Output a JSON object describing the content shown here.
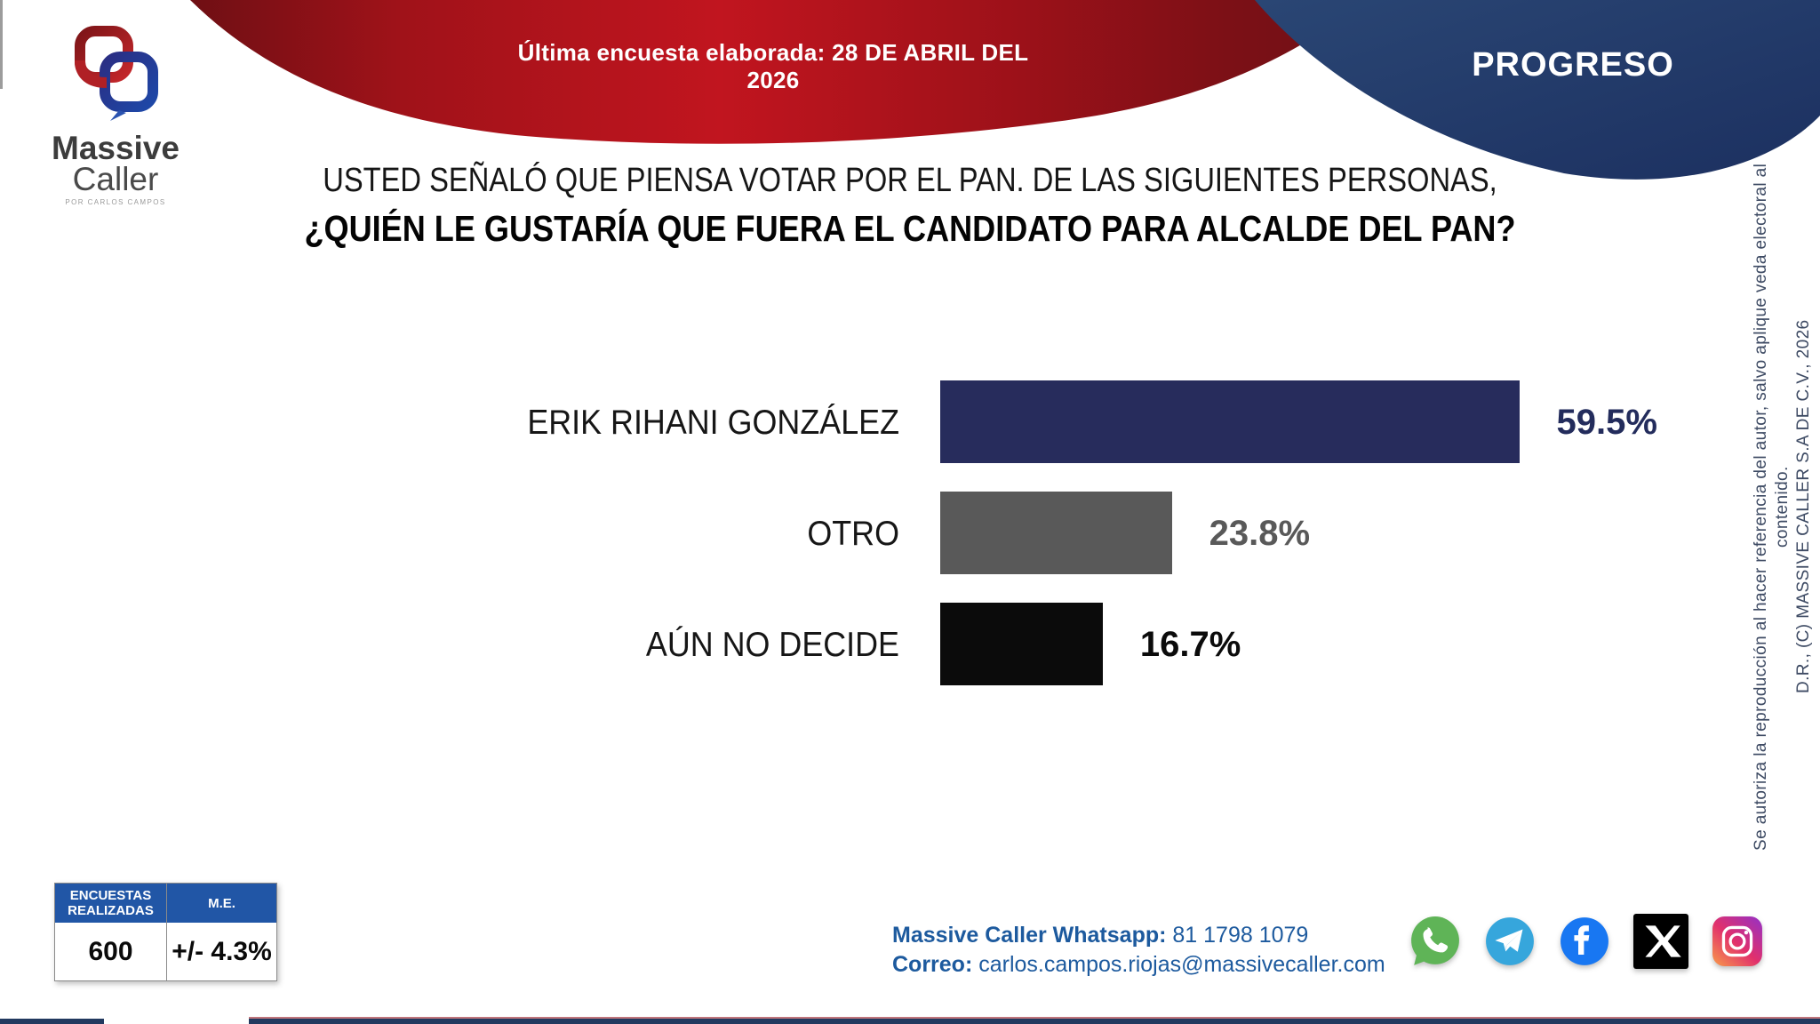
{
  "header": {
    "banner_text": "Última encuesta elaborada: 28 DE ABRIL DEL 2026",
    "region_label": "PROGRESO"
  },
  "logo": {
    "word1": "Massive",
    "word2": "Caller",
    "tagline": "POR CARLOS CAMPOS"
  },
  "question": {
    "line1": "USTED SEÑALÓ QUE PIENSA VOTAR POR EL PAN. DE LAS SIGUIENTES PERSONAS,",
    "line2": "¿QUIÉN LE GUSTARÍA QUE FUERA EL CANDIDATO PARA ALCALDE DEL PAN?"
  },
  "chart_data": {
    "type": "bar",
    "orientation": "horizontal",
    "title": "¿QUIÉN LE GUSTARÍA QUE FUERA EL CANDIDATO PARA ALCALDE DEL PAN?",
    "categories": [
      "ERIK RIHANI GONZÁLEZ",
      "OTRO",
      "AÚN NO DECIDE"
    ],
    "values": [
      59.5,
      23.8,
      16.7
    ],
    "value_labels": [
      "59.5%",
      "23.8%",
      "16.7%"
    ],
    "bar_colors": [
      "#272c5c",
      "#595959",
      "#0b0b0b"
    ],
    "value_text_colors": [
      "#232c5c",
      "#595959",
      "#0b0b0b"
    ],
    "xlim": [
      0,
      100
    ],
    "grid": false,
    "legend": false
  },
  "stats_table": {
    "headers": [
      "ENCUESTAS REALIZADAS",
      "M.E."
    ],
    "values": [
      "600",
      "+/- 4.3%"
    ],
    "header_bg": "#2156a6"
  },
  "contact": {
    "whatsapp_label": "Massive Caller Whatsapp:",
    "whatsapp_number": "81 1798 1079",
    "email_label": "Correo:",
    "email": "carlos.campos.riojas@massivecaller.com"
  },
  "social_icons": [
    "whatsapp",
    "telegram",
    "facebook",
    "x",
    "instagram"
  ],
  "copyright": {
    "line1": "D.R., (C) MASSIVE CALLER S.A DE C.V., 2026",
    "line2": "Se autoriza la reproducción al hacer referencia del autor, salvo aplique veda electoral al contenido."
  },
  "colors": {
    "banner_red": "#b5131e",
    "banner_red_dark": "#6f0f14",
    "shape_blue": "#20386a",
    "bar_navy": "#272c5c",
    "bar_gray": "#595959",
    "bar_black": "#0b0b0b",
    "table_header_blue": "#2156a6",
    "contact_blue": "#1d5a9e",
    "footer_navy": "#22395f"
  }
}
